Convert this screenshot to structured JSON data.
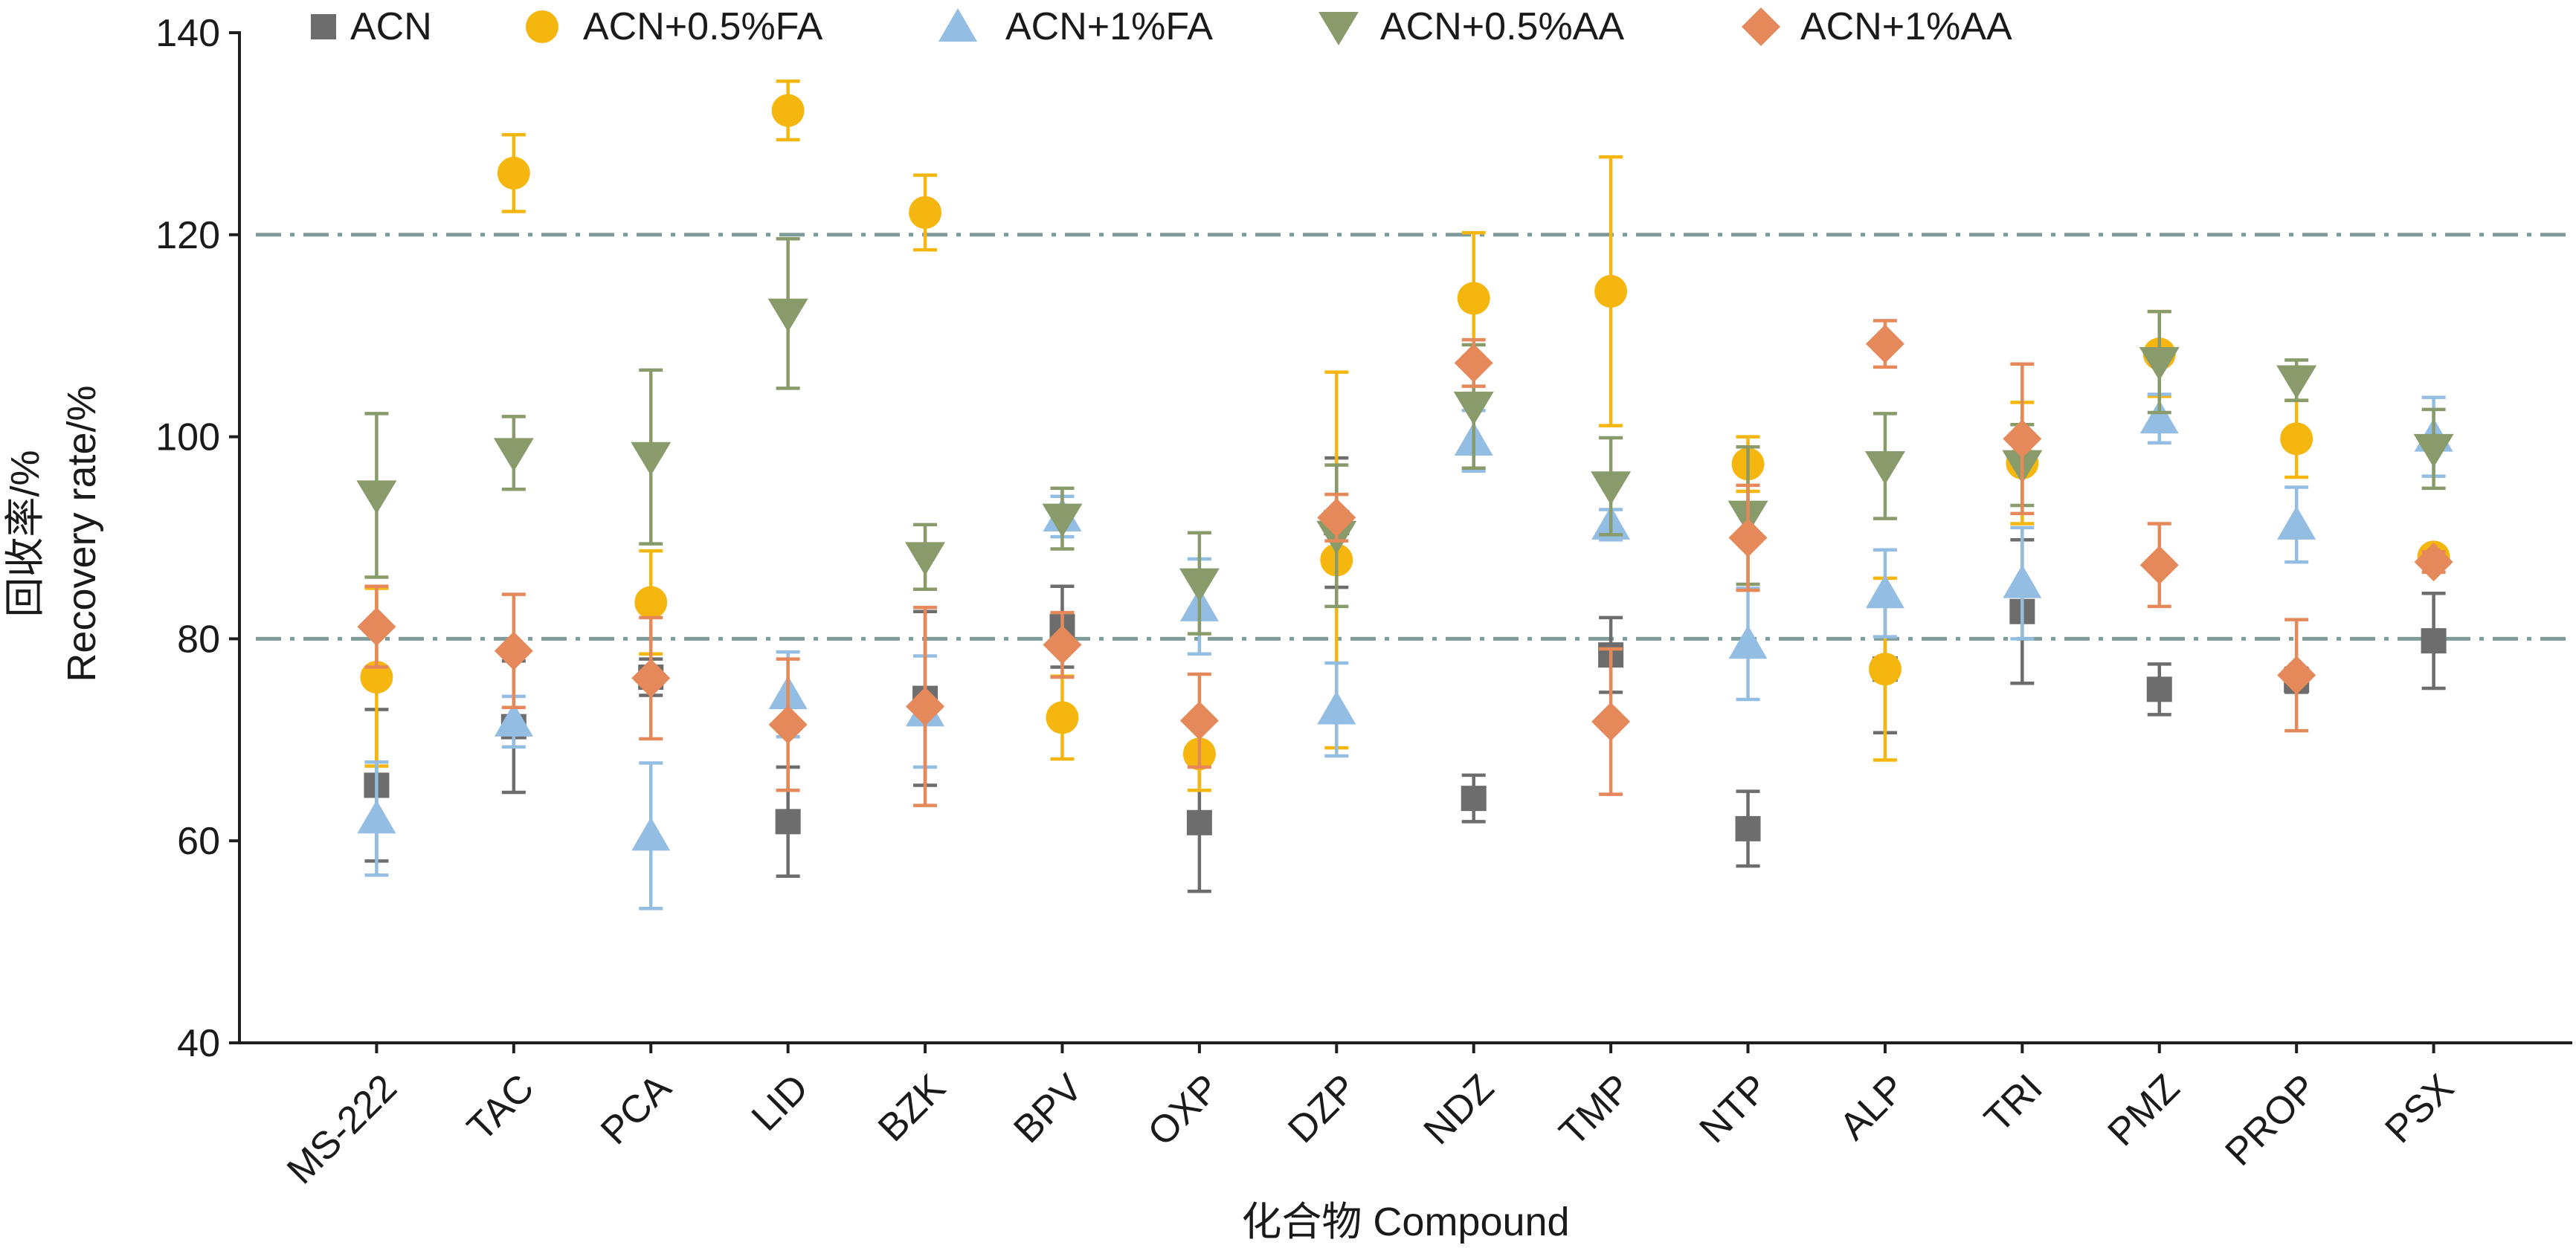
{
  "chart_data": {
    "type": "scatter",
    "xlabel": "化合物 Compound",
    "ylabel": "Recovery rate/%",
    "ylabel_cn": "回收率/%",
    "ylim": [
      40,
      140
    ],
    "yticks": [
      40,
      60,
      80,
      100,
      120,
      140
    ],
    "grid": false,
    "legend_position": "top",
    "reference_lines": [
      80,
      120
    ],
    "reference_line_color": "#7e9c9a",
    "categories": [
      "MS-222",
      "TAC",
      "PCA",
      "LID",
      "BZK",
      "BPV",
      "OXP",
      "DZP",
      "NDZ",
      "TMP",
      "NTP",
      "ALP",
      "TRI",
      "PMZ",
      "PROP",
      "PSX"
    ],
    "series": [
      {
        "name": "ACN",
        "color": "#6d6d6d",
        "values": [
          65.5,
          71.3,
          76.2,
          61.9,
          74.1,
          81.2,
          61.8,
          91.5,
          64.2,
          78.4,
          61.2,
          77.0,
          82.7,
          75.0,
          75.9,
          79.8
        ],
        "errors": [
          7.5,
          6.5,
          1.8,
          5.4,
          8.6,
          4.0,
          6.8,
          6.4,
          2.3,
          3.7,
          3.7,
          6.3,
          7.1,
          2.5,
          1.2,
          4.7
        ]
      },
      {
        "name": "ACN+0.5%FA",
        "color": "#f5b60f",
        "values": [
          76.2,
          126.1,
          83.6,
          132.3,
          122.2,
          72.2,
          68.6,
          87.8,
          113.7,
          114.4,
          97.3,
          77.0,
          97.4,
          108.2,
          99.8,
          88.1
        ],
        "errors": [
          8.8,
          3.8,
          5.1,
          2.9,
          3.7,
          4.1,
          3.6,
          18.6,
          6.5,
          13.3,
          2.7,
          9.0,
          6.0,
          4.2,
          3.8,
          1.0
        ]
      },
      {
        "name": "ACN+1%FA",
        "color": "#93bde3",
        "values": [
          62.2,
          71.8,
          60.5,
          74.5,
          72.8,
          92.1,
          83.2,
          73.0,
          99.6,
          91.3,
          79.5,
          84.5,
          85.5,
          101.8,
          91.3,
          100.0
        ],
        "errors": [
          5.6,
          2.5,
          7.2,
          4.2,
          5.5,
          2.0,
          4.7,
          4.6,
          3.0,
          1.5,
          5.5,
          4.3,
          5.5,
          2.4,
          3.7,
          3.9
        ]
      },
      {
        "name": "ACN+0.5%AA",
        "color": "#899b6a",
        "values": [
          94.2,
          98.4,
          98.0,
          112.2,
          88.1,
          91.9,
          85.5,
          90.2,
          103.0,
          95.1,
          92.2,
          97.1,
          97.2,
          107.4,
          105.6,
          98.8
        ],
        "errors": [
          8.1,
          3.6,
          8.6,
          7.4,
          3.2,
          3.0,
          5.0,
          7.0,
          6.1,
          4.8,
          6.8,
          5.2,
          4.0,
          5.0,
          2.0,
          3.9
        ]
      },
      {
        "name": "ACN+1%AA",
        "color": "#e5895b",
        "values": [
          81.2,
          78.8,
          76.1,
          71.5,
          73.3,
          79.4,
          71.9,
          92.0,
          107.3,
          71.8,
          90.0,
          109.2,
          99.8,
          87.3,
          76.4,
          87.6
        ],
        "errors": [
          4.0,
          5.6,
          6.0,
          6.5,
          9.8,
          3.2,
          4.6,
          2.3,
          2.3,
          7.2,
          5.2,
          2.3,
          7.4,
          4.1,
          5.5,
          1.0
        ]
      }
    ]
  }
}
